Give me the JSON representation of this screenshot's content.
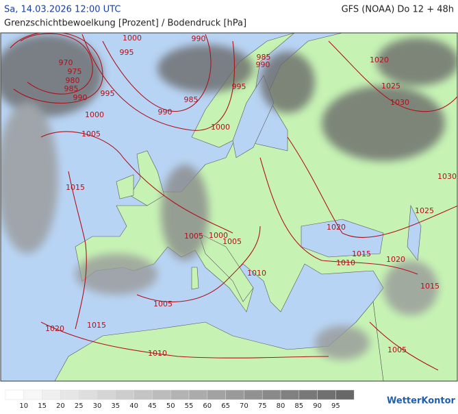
{
  "header": {
    "date": "Sa, 14.03.2026 12:00 UTC",
    "model": "GFS (NOAA) Do 12 + 48h",
    "title": "Grenzschichtbewoelkung [Prozent] / Bodendruck [hPa]"
  },
  "isobar_labels": [
    1000,
    990,
    995,
    970,
    975,
    980,
    985,
    990,
    995,
    990,
    985,
    1000,
    1005,
    1015,
    1000,
    995,
    985,
    990,
    1020,
    1025,
    1030,
    1030,
    1025,
    1020,
    1015,
    1010,
    1020,
    1015,
    1005,
    1000,
    1005,
    1010,
    1005,
    1015,
    1020,
    1010,
    1005
  ],
  "legend": {
    "labels": [
      10,
      15,
      20,
      25,
      30,
      35,
      40,
      45,
      50,
      55,
      60,
      65,
      70,
      75,
      80,
      85,
      90,
      95
    ],
    "colors": [
      "#ffffff",
      "#f7f7f7",
      "#efefef",
      "#e6e6e6",
      "#dedede",
      "#d5d5d5",
      "#cdcdcd",
      "#c4c4c4",
      "#bcbcbc",
      "#b3b3b3",
      "#ababab",
      "#a2a2a2",
      "#9a9a9a",
      "#919191",
      "#898989",
      "#808080",
      "#787878",
      "#707070",
      "#686868"
    ]
  },
  "brand": "WetterKontor"
}
